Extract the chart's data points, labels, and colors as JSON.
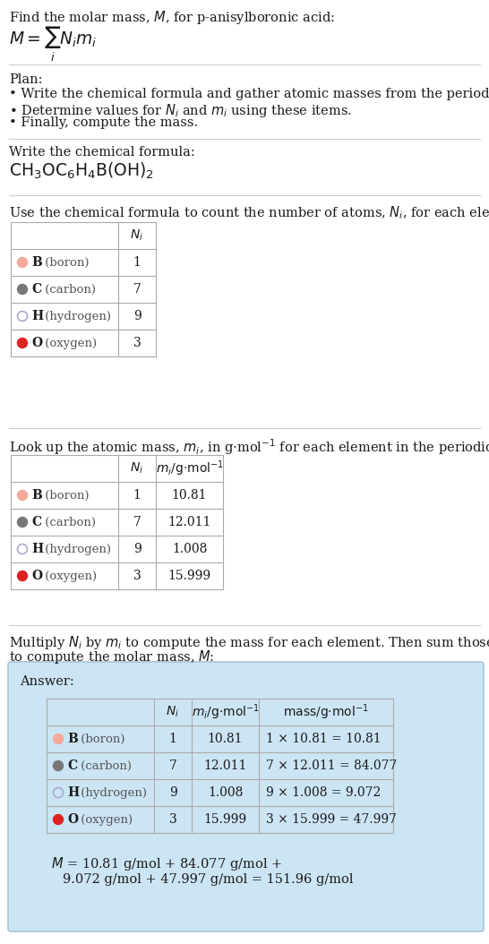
{
  "bg_color": "#ffffff",
  "answer_bg": "#cce5f5",
  "answer_border": "#9bbcd4",
  "text_color": "#1a1a1a",
  "gray_text": "#555555",
  "table_line_color": "#aaaaaa",
  "sep_line_color": "#cccccc",
  "elements": [
    "B",
    "C",
    "H",
    "O"
  ],
  "element_names": [
    "boron",
    "carbon",
    "hydrogen",
    "oxygen"
  ],
  "dot_colors": [
    "#f4a99a",
    "#777777",
    "#ffffff",
    "#dd2222"
  ],
  "dot_edge_colors": [
    "#f4a99a",
    "#777777",
    "#aaaacc",
    "#dd2222"
  ],
  "dot_filled": [
    true,
    true,
    false,
    true
  ],
  "Ni": [
    1,
    7,
    9,
    3
  ],
  "mi_str": [
    "10.81",
    "12.011",
    "1.008",
    "15.999"
  ],
  "mass_exprs": [
    "1 × 10.81 = 10.81",
    "7 × 12.011 = 84.077",
    "9 × 1.008 = 9.072",
    "3 × 15.999 = 47.997"
  ],
  "fs_body": 10.5,
  "fs_formula": 13.5,
  "fs_table": 10.0
}
